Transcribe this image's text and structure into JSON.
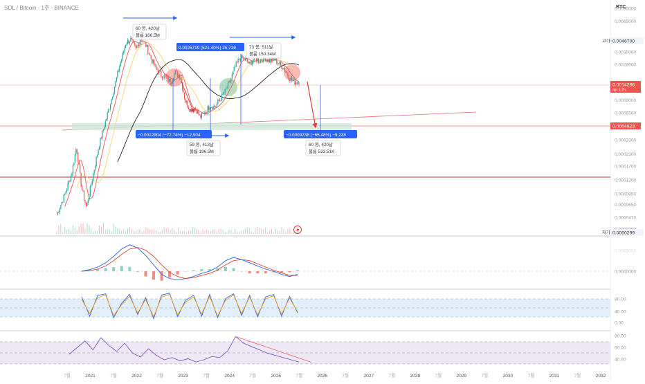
{
  "header": {
    "symbol_title": "SOL / Bitcoin · 1주 · BINANCE",
    "currency": "BTC"
  },
  "colors": {
    "up": "#26a69a",
    "down": "#ef5350",
    "ma_fast": "#ef5350",
    "ma_slow": "#f5d76e",
    "ma_long": "#222222",
    "macd": "#2962ff",
    "signal": "#e0442f",
    "accent": "#2962ff",
    "band_fill": "#e3f0fb",
    "rsi_fill": "#efe8f7",
    "rsi_line": "#7e57c2",
    "grid": "#e8e8e8"
  },
  "chart_data": [
    {
      "type": "candlestick",
      "name": "price",
      "y_scale": "log",
      "ylim": [
        2.99e-05,
        0.009
      ],
      "x_ticks": [
        "7월",
        "2021",
        "7월",
        "2022",
        "7월",
        "2023",
        "7월",
        "2024",
        "7월",
        "2025",
        "7월",
        "2026",
        "7월",
        "2027",
        "7월",
        "2028",
        "7월",
        "2029",
        "7월",
        "2030",
        "7월",
        "2031",
        "7월",
        "2032"
      ],
      "y_ticks": [
        "0.0090000",
        "0.0065000",
        "0.0046700",
        "0.0030000",
        "0.0022000",
        "0.0014286",
        "0.0009000",
        "0.0006500",
        "0.0004823",
        "0.0003300",
        "0.0002300",
        "0.0001700",
        "0.0001200",
        "0.0000850",
        "0.0000650",
        "0.0000470",
        "0.0000350",
        "0.0000299"
      ],
      "high_label": "고가",
      "high_value": "0.0046700",
      "low_label": "저가",
      "low_value": "0.0000299",
      "current_price": "0.0014286",
      "current_countdown": "6d 17h",
      "support_price": "0.0004823",
      "price_path": [
        [
          0,
          5e-05
        ],
        [
          3,
          8e-05
        ],
        [
          6,
          0.00014
        ],
        [
          8,
          0.00028
        ],
        [
          10,
          0.0001
        ],
        [
          12,
          6e-05
        ],
        [
          14,
          0.00011
        ],
        [
          17,
          0.00028
        ],
        [
          21,
          0.0007
        ],
        [
          25,
          0.0019
        ],
        [
          28,
          0.0038
        ],
        [
          30,
          0.0041
        ],
        [
          32,
          0.0032
        ],
        [
          34,
          0.0042
        ],
        [
          36,
          0.0036
        ],
        [
          38,
          0.0026
        ],
        [
          40,
          0.002
        ],
        [
          42,
          0.0017
        ],
        [
          44,
          0.0016
        ],
        [
          46,
          0.0014
        ],
        [
          48,
          0.0018
        ],
        [
          50,
          0.0016
        ],
        [
          52,
          0.00088
        ],
        [
          54,
          0.0007
        ],
        [
          56,
          0.00074
        ],
        [
          58,
          0.00058
        ],
        [
          60,
          0.00066
        ],
        [
          62,
          0.00078
        ],
        [
          64,
          0.00076
        ],
        [
          66,
          0.0009
        ],
        [
          68,
          0.0011
        ],
        [
          70,
          0.0014
        ],
        [
          72,
          0.002
        ],
        [
          74,
          0.0026
        ],
        [
          76,
          0.0025
        ],
        [
          78,
          0.0022
        ],
        [
          80,
          0.0026
        ],
        [
          82,
          0.0024
        ],
        [
          84,
          0.0026
        ],
        [
          86,
          0.0024
        ],
        [
          88,
          0.0025
        ],
        [
          90,
          0.0022
        ],
        [
          92,
          0.002
        ],
        [
          94,
          0.0016
        ],
        [
          96,
          0.0014
        ],
        [
          98,
          0.00143
        ]
      ],
      "annotations": {
        "bar_count_1": "60 봉, 420날",
        "volume_1": "볼륨 166.5M",
        "rise_measure": "0.0025719 (521.40%) 25,719",
        "bar_count_2": "73 봉, 511날",
        "volume_2": "볼륨 150.34M",
        "drop_measure_1": "−0.0012904 (−72.74%) −12,904",
        "bar_count_3": "59 봉, 413날",
        "volume_3": "볼륨 196.5M",
        "drop_measure_2": "−0.0009238 (−65.48%) −9,238",
        "bar_count_4": "60 봉, 420날",
        "volume_4": "볼륨 533.51K"
      }
    },
    {
      "type": "line",
      "name": "macd",
      "ylim": [
        -0.0003,
        0.0006
      ],
      "y_ticks": [
        "0.0000000"
      ],
      "macd": [
        0,
        3e-05,
        8e-05,
        0.00016,
        0.00028,
        0.00042,
        0.0005,
        0.00044,
        0.0003,
        0.00012,
        -6e-05,
        -0.00014,
        -0.00016,
        -0.00014,
        -0.0001,
        -4e-05,
        0.0,
        8e-05,
        0.0002,
        0.00026,
        0.00022,
        0.00016,
        0.0001,
        4e-05,
        0.0,
        -6e-05,
        -0.0001,
        -6e-05
      ],
      "signal": [
        0,
        1e-05,
        4e-05,
        0.0001,
        0.0002,
        0.00032,
        0.00042,
        0.00045,
        0.0004,
        0.00028,
        0.00012,
        -2e-05,
        -0.0001,
        -0.00014,
        -0.00012,
        -8e-05,
        -4e-05,
        2e-05,
        0.00012,
        0.0002,
        0.00022,
        0.0002,
        0.00014,
        8e-05,
        2e-05,
        -3e-05,
        -8e-05,
        -8e-05
      ]
    },
    {
      "type": "line",
      "name": "stochastic",
      "ylim": [
        0,
        100
      ],
      "y_ticks": [
        "80.00",
        "40.00",
        "0.00"
      ],
      "k": [
        80,
        20,
        85,
        90,
        15,
        60,
        88,
        25,
        78,
        12,
        86,
        92,
        18,
        70,
        85,
        20,
        88,
        15,
        75,
        90,
        22,
        85,
        18,
        80,
        88,
        20,
        82,
        30
      ],
      "d": [
        72,
        28,
        78,
        86,
        22,
        55,
        82,
        30,
        72,
        18,
        80,
        88,
        24,
        64,
        80,
        26,
        82,
        20,
        70,
        86,
        28,
        80,
        24,
        74,
        84,
        26,
        76,
        34
      ]
    },
    {
      "type": "line",
      "name": "rsi",
      "ylim": [
        25,
        90
      ],
      "y_ticks": [
        "80.00",
        "60.00",
        "40.00"
      ],
      "rsi": [
        50,
        62,
        74,
        58,
        80,
        66,
        55,
        70,
        52,
        45,
        60,
        48,
        40,
        44,
        38,
        42,
        36,
        40,
        46,
        44,
        56,
        82,
        70,
        64,
        58,
        52,
        48,
        44,
        40,
        36
      ],
      "trendline": [
        [
          21,
          82
        ],
        [
          29,
          33
        ]
      ]
    }
  ]
}
